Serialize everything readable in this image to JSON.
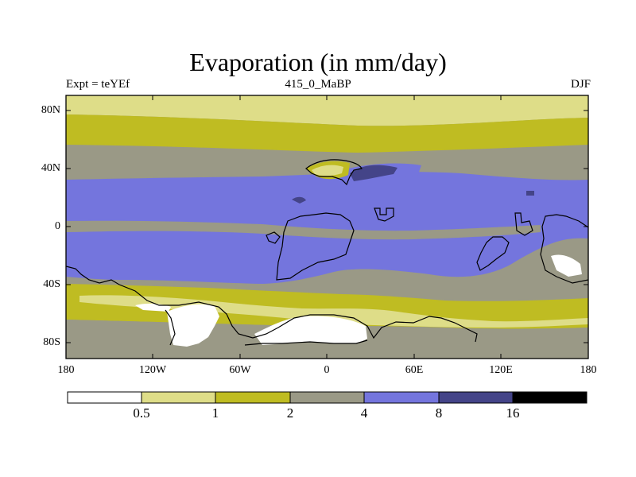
{
  "plot": {
    "title": "Evaporation (in mm/day)",
    "left_label": "Expt = teYEf",
    "center_label": "415_0_MaBP",
    "right_label": "DJF"
  },
  "axes": {
    "lat_ticks": [
      "80N",
      "40N",
      "0",
      "40S",
      "80S"
    ],
    "lon_ticks": [
      "180",
      "120W",
      "60W",
      "0",
      "60E",
      "120E",
      "180"
    ]
  },
  "colorbar": {
    "labels": [
      "0.5",
      "1",
      "2",
      "4",
      "8",
      "16"
    ],
    "colors": [
      "#ffffff",
      "#dedd88",
      "#bfbc22",
      "#9a9986",
      "#7475dd",
      "#444488",
      "#000000"
    ]
  },
  "map_colors": {
    "c0": "#ffffff",
    "c1": "#dedd88",
    "c2": "#bfbc22",
    "c3": "#9a9986",
    "c4": "#7475dd",
    "c5": "#444488",
    "coast": "#000000"
  }
}
